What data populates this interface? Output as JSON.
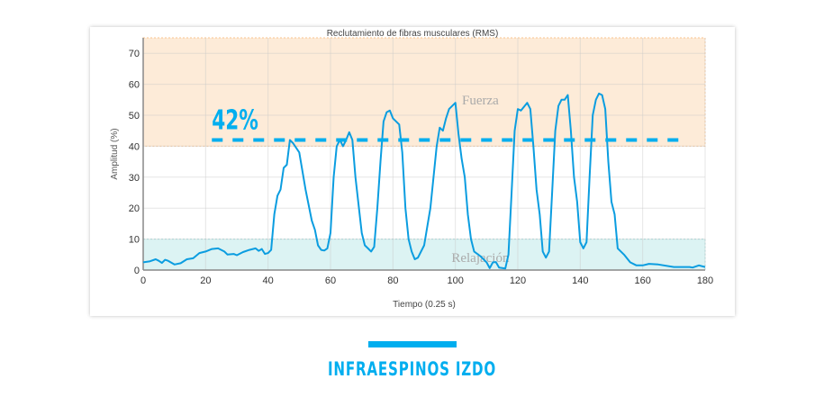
{
  "chart_data": {
    "type": "line",
    "title": "Reclutamiento de fibras musculares (RMS)",
    "xlabel": "Tiempo (0.25 s)",
    "ylabel": "Amplitud (%)",
    "xlim": [
      0,
      180
    ],
    "ylim": [
      0,
      75
    ],
    "xticks": [
      0,
      20,
      40,
      60,
      80,
      100,
      120,
      140,
      160,
      180
    ],
    "yticks": [
      0,
      10,
      20,
      30,
      40,
      50,
      60,
      70
    ],
    "grid": true,
    "bands": [
      {
        "label": "Fuerza",
        "from": 40,
        "to": 75,
        "color": "#fdebd8"
      },
      {
        "label": "Relajación",
        "from": 0,
        "to": 10,
        "color": "#dcf3f3"
      }
    ],
    "threshold": {
      "label": "42%",
      "value": 42,
      "color": "#00aeef"
    },
    "line_color": "#0b9de0",
    "series": [
      {
        "x": [
          0,
          2,
          4,
          5,
          6,
          7,
          8,
          10,
          12,
          14,
          16,
          18,
          20,
          22,
          24,
          26,
          27,
          29,
          30,
          32,
          34,
          36,
          37,
          38,
          39,
          40,
          41,
          42,
          43,
          44,
          45,
          46,
          47,
          48,
          50,
          52,
          54,
          55,
          56,
          57,
          58,
          59,
          60,
          61,
          62,
          63,
          64,
          65,
          66,
          67,
          68,
          70,
          71,
          72,
          73,
          74,
          75,
          76,
          77,
          78,
          79,
          80,
          82,
          83,
          84,
          85,
          86,
          87,
          88,
          90,
          92,
          94,
          95,
          96,
          97,
          98,
          100,
          101,
          102,
          103,
          104,
          105,
          106,
          108,
          110,
          111,
          112,
          113,
          114,
          116,
          117,
          118,
          119,
          120,
          121,
          123,
          124,
          125,
          126,
          127,
          128,
          129,
          130,
          131,
          132,
          133,
          134,
          135,
          136,
          137,
          138,
          139,
          140,
          141,
          142,
          143,
          144,
          145,
          146,
          147,
          148,
          149,
          150,
          151,
          152,
          154,
          156,
          158,
          160,
          162,
          165,
          170,
          175,
          176,
          178,
          180
        ],
        "y": [
          2.5,
          2.8,
          3.5,
          3,
          2.3,
          3.3,
          3,
          1.8,
          2.2,
          3.5,
          3.8,
          5.5,
          6,
          6.8,
          7,
          6,
          5,
          5.2,
          4.8,
          5.8,
          6.5,
          7,
          6.2,
          6.8,
          5.2,
          5.5,
          6.5,
          18,
          24,
          26,
          33,
          34,
          42,
          41,
          38,
          26,
          16,
          13,
          8,
          6.5,
          6.3,
          7,
          12,
          30,
          40,
          42,
          40,
          42,
          44.5,
          42,
          30,
          12,
          8,
          7,
          6,
          7.5,
          20,
          35,
          48,
          51,
          51.5,
          49,
          47,
          38,
          20,
          10,
          6,
          3.5,
          4,
          8,
          20,
          40,
          46,
          45,
          49,
          52,
          54,
          44,
          36,
          30,
          18,
          10,
          6,
          4.5,
          2.5,
          0.6,
          2.5,
          2.6,
          0.8,
          0.5,
          5,
          25,
          45,
          52,
          51.5,
          54,
          52,
          40,
          26,
          18,
          6,
          4,
          6,
          25,
          45,
          53,
          55,
          55,
          56.5,
          45,
          30,
          22,
          9,
          7,
          9,
          30,
          50,
          55,
          57,
          56.5,
          52,
          35,
          22,
          18,
          7,
          5,
          2.5,
          1.5,
          1.5,
          2,
          1.8,
          1,
          1,
          0.8,
          1.5,
          1
        ]
      }
    ]
  },
  "caption": "INFRAESPINOS IZDO"
}
